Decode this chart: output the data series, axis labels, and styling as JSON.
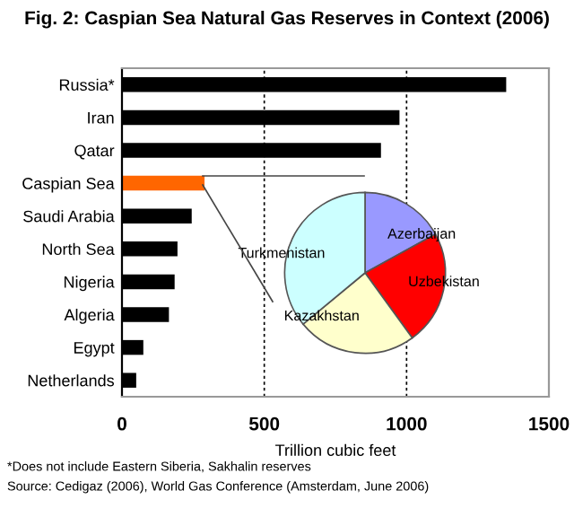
{
  "chart_data": [
    {
      "type": "bar",
      "orientation": "horizontal",
      "title": "Fig. 2: Caspian Sea Natural Gas Reserves in Context (2006)",
      "xlabel": "Trillion cubic feet",
      "categories": [
        "Russia*",
        "Iran",
        "Qatar",
        "Caspian Sea",
        "Saudi Arabia",
        "North Sea",
        "Nigeria",
        "Algeria",
        "Egypt",
        "Netherlands"
      ],
      "values": [
        1350,
        975,
        910,
        290,
        245,
        195,
        185,
        165,
        75,
        50
      ],
      "colors": [
        "#000000",
        "#000000",
        "#000000",
        "#ff6600",
        "#000000",
        "#000000",
        "#000000",
        "#000000",
        "#000000",
        "#000000"
      ],
      "xlim": [
        0,
        1500
      ],
      "xticks": [
        0,
        500,
        1000,
        1500
      ],
      "grid": "x",
      "line_style": "dashed",
      "annotations": [
        "*Does not include Eastern Siberia, Sakhalin reserves",
        "Source: Cedigaz (2006), World Gas Conference (Amsterdam, June 2006)"
      ]
    },
    {
      "type": "pie",
      "categories": [
        "Azerbaijan",
        "Uzbekistan",
        "Kazakhstan",
        "Turkmenistan"
      ],
      "values": [
        17,
        23,
        24,
        36
      ],
      "colors": [
        "#9999ff",
        "#ff0000",
        "#ffffcc",
        "#ccffff"
      ]
    }
  ]
}
